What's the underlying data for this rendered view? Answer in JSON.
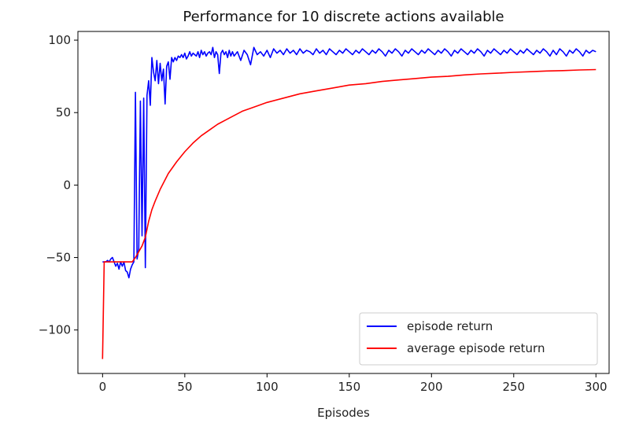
{
  "chart_data": {
    "type": "line",
    "title": "Performance for 10 discrete actions available",
    "xlabel": "Episodes",
    "ylabel": "",
    "xlim": [
      -15,
      308
    ],
    "ylim": [
      -130,
      106
    ],
    "xticks": [
      0,
      50,
      100,
      150,
      200,
      250,
      300
    ],
    "yticks": [
      -100,
      -50,
      0,
      50,
      100
    ],
    "grid": false,
    "legend": {
      "position": "bottom-right"
    },
    "series": [
      {
        "name": "episode return",
        "color": "#0000ff",
        "points": [
          [
            0,
            -53
          ],
          [
            2,
            -53
          ],
          [
            3,
            -52
          ],
          [
            4,
            -53
          ],
          [
            5,
            -51
          ],
          [
            6,
            -50
          ],
          [
            7,
            -53
          ],
          [
            8,
            -56
          ],
          [
            9,
            -54
          ],
          [
            10,
            -58
          ],
          [
            11,
            -53
          ],
          [
            12,
            -56
          ],
          [
            13,
            -53
          ],
          [
            14,
            -59
          ],
          [
            15,
            -60
          ],
          [
            16,
            -64
          ],
          [
            17,
            -58
          ],
          [
            18,
            -55
          ],
          [
            19,
            -53
          ],
          [
            20,
            64
          ],
          [
            21,
            -51
          ],
          [
            22,
            -44
          ],
          [
            23,
            58
          ],
          [
            24,
            -35
          ],
          [
            25,
            60
          ],
          [
            26,
            -57
          ],
          [
            27,
            62
          ],
          [
            28,
            72
          ],
          [
            29,
            55
          ],
          [
            30,
            88
          ],
          [
            31,
            78
          ],
          [
            32,
            72
          ],
          [
            33,
            86
          ],
          [
            34,
            70
          ],
          [
            35,
            84
          ],
          [
            36,
            72
          ],
          [
            37,
            80
          ],
          [
            38,
            56
          ],
          [
            39,
            82
          ],
          [
            40,
            85
          ],
          [
            41,
            73
          ],
          [
            42,
            88
          ],
          [
            43,
            85
          ],
          [
            44,
            88
          ],
          [
            45,
            86
          ],
          [
            46,
            89
          ],
          [
            47,
            88
          ],
          [
            48,
            90
          ],
          [
            49,
            88
          ],
          [
            50,
            91
          ],
          [
            51,
            87
          ],
          [
            52,
            89
          ],
          [
            53,
            92
          ],
          [
            54,
            89
          ],
          [
            55,
            91
          ],
          [
            56,
            90
          ],
          [
            57,
            89
          ],
          [
            58,
            92
          ],
          [
            59,
            88
          ],
          [
            60,
            93
          ],
          [
            61,
            90
          ],
          [
            62,
            92
          ],
          [
            63,
            89
          ],
          [
            64,
            91
          ],
          [
            65,
            92
          ],
          [
            66,
            90
          ],
          [
            67,
            95
          ],
          [
            68,
            88
          ],
          [
            69,
            92
          ],
          [
            70,
            90
          ],
          [
            71,
            77
          ],
          [
            72,
            91
          ],
          [
            73,
            93
          ],
          [
            74,
            90
          ],
          [
            75,
            92
          ],
          [
            76,
            88
          ],
          [
            77,
            93
          ],
          [
            78,
            89
          ],
          [
            79,
            92
          ],
          [
            80,
            89
          ],
          [
            82,
            92
          ],
          [
            84,
            86
          ],
          [
            86,
            93
          ],
          [
            88,
            90
          ],
          [
            90,
            83
          ],
          [
            92,
            95
          ],
          [
            94,
            90
          ],
          [
            96,
            92
          ],
          [
            98,
            89
          ],
          [
            100,
            93
          ],
          [
            102,
            88
          ],
          [
            104,
            94
          ],
          [
            106,
            91
          ],
          [
            108,
            93
          ],
          [
            110,
            90
          ],
          [
            112,
            94
          ],
          [
            114,
            91
          ],
          [
            116,
            93
          ],
          [
            118,
            90
          ],
          [
            120,
            94
          ],
          [
            122,
            91
          ],
          [
            124,
            93
          ],
          [
            126,
            92
          ],
          [
            128,
            90
          ],
          [
            130,
            94
          ],
          [
            132,
            91
          ],
          [
            134,
            93
          ],
          [
            136,
            90
          ],
          [
            138,
            94
          ],
          [
            140,
            92
          ],
          [
            142,
            90
          ],
          [
            144,
            93
          ],
          [
            146,
            91
          ],
          [
            148,
            94
          ],
          [
            150,
            92
          ],
          [
            152,
            90
          ],
          [
            154,
            93
          ],
          [
            156,
            91
          ],
          [
            158,
            94
          ],
          [
            160,
            92
          ],
          [
            162,
            90
          ],
          [
            164,
            93
          ],
          [
            166,
            91
          ],
          [
            168,
            94
          ],
          [
            170,
            92
          ],
          [
            172,
            89
          ],
          [
            174,
            93
          ],
          [
            176,
            91
          ],
          [
            178,
            94
          ],
          [
            180,
            92
          ],
          [
            182,
            89
          ],
          [
            184,
            93
          ],
          [
            186,
            91
          ],
          [
            188,
            94
          ],
          [
            190,
            92
          ],
          [
            192,
            90
          ],
          [
            194,
            93
          ],
          [
            196,
            91
          ],
          [
            198,
            94
          ],
          [
            200,
            92
          ],
          [
            202,
            90
          ],
          [
            204,
            93
          ],
          [
            206,
            91
          ],
          [
            208,
            94
          ],
          [
            210,
            92
          ],
          [
            212,
            89
          ],
          [
            214,
            93
          ],
          [
            216,
            91
          ],
          [
            218,
            94
          ],
          [
            220,
            92
          ],
          [
            222,
            90
          ],
          [
            224,
            93
          ],
          [
            226,
            91
          ],
          [
            228,
            94
          ],
          [
            230,
            92
          ],
          [
            232,
            89
          ],
          [
            234,
            93
          ],
          [
            236,
            91
          ],
          [
            238,
            94
          ],
          [
            240,
            92
          ],
          [
            242,
            90
          ],
          [
            244,
            93
          ],
          [
            246,
            91
          ],
          [
            248,
            94
          ],
          [
            250,
            92
          ],
          [
            252,
            90
          ],
          [
            254,
            93
          ],
          [
            256,
            91
          ],
          [
            258,
            94
          ],
          [
            260,
            92
          ],
          [
            262,
            90
          ],
          [
            264,
            93
          ],
          [
            266,
            91
          ],
          [
            268,
            94
          ],
          [
            270,
            92
          ],
          [
            272,
            89
          ],
          [
            274,
            93
          ],
          [
            276,
            90
          ],
          [
            278,
            94
          ],
          [
            280,
            92
          ],
          [
            282,
            89
          ],
          [
            284,
            93
          ],
          [
            286,
            91
          ],
          [
            288,
            94
          ],
          [
            290,
            92
          ],
          [
            292,
            89
          ],
          [
            294,
            93
          ],
          [
            296,
            91
          ],
          [
            298,
            93
          ],
          [
            300,
            92
          ]
        ]
      },
      {
        "name": "average episode return",
        "color": "#ff0000",
        "points": [
          [
            0,
            -120
          ],
          [
            1,
            -53
          ],
          [
            5,
            -53
          ],
          [
            10,
            -53
          ],
          [
            15,
            -53
          ],
          [
            18,
            -53
          ],
          [
            20,
            -50
          ],
          [
            22,
            -46
          ],
          [
            24,
            -42
          ],
          [
            26,
            -36
          ],
          [
            28,
            -25
          ],
          [
            30,
            -17
          ],
          [
            32,
            -11
          ],
          [
            35,
            -3
          ],
          [
            40,
            8
          ],
          [
            45,
            16
          ],
          [
            50,
            23
          ],
          [
            55,
            29
          ],
          [
            60,
            34
          ],
          [
            65,
            38
          ],
          [
            70,
            42
          ],
          [
            75,
            45
          ],
          [
            80,
            48
          ],
          [
            85,
            51
          ],
          [
            90,
            53
          ],
          [
            95,
            55
          ],
          [
            100,
            57
          ],
          [
            110,
            60
          ],
          [
            120,
            63
          ],
          [
            130,
            65
          ],
          [
            140,
            67
          ],
          [
            150,
            69
          ],
          [
            160,
            70
          ],
          [
            170,
            71.5
          ],
          [
            180,
            72.5
          ],
          [
            190,
            73.5
          ],
          [
            200,
            74.5
          ],
          [
            210,
            75
          ],
          [
            220,
            76
          ],
          [
            230,
            76.7
          ],
          [
            240,
            77.2
          ],
          [
            250,
            77.8
          ],
          [
            260,
            78.2
          ],
          [
            270,
            78.7
          ],
          [
            280,
            79
          ],
          [
            290,
            79.4
          ],
          [
            300,
            79.7
          ]
        ]
      }
    ]
  }
}
